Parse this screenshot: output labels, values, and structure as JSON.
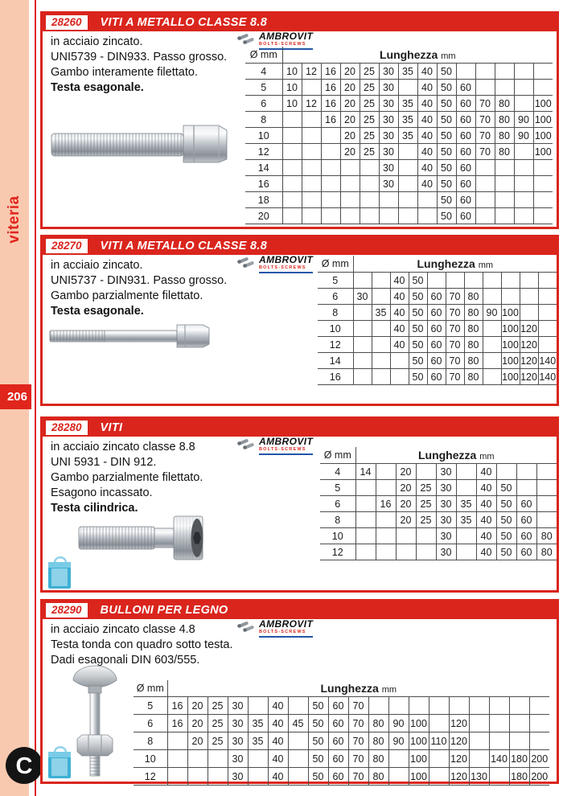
{
  "page": {
    "sidebar_label": "viteria",
    "page_number": "206",
    "corner_mark": "C"
  },
  "brand": {
    "name": "AMBROVIT",
    "subtitle": "BOLTS-SCREWS"
  },
  "table_header": {
    "diameter": "Ø mm",
    "length": "Lunghezza",
    "length_unit": "mm"
  },
  "sections": [
    {
      "code": "28260",
      "title": "VITI A METALLO CLASSE 8.8",
      "description": [
        "in acciaio zincato.",
        "UNI5739 - DIN933. Passo grosso.",
        "Gambo interamente filettato."
      ],
      "emphasis": "Testa esagonale.",
      "table": {
        "rows": [
          {
            "d": "4",
            "cells": [
              "10",
              "12",
              "16",
              "20",
              "25",
              "30",
              "35",
              "40",
              "50",
              "",
              "",
              "",
              "",
              ""
            ]
          },
          {
            "d": "5",
            "cells": [
              "10",
              "",
              "16",
              "20",
              "25",
              "30",
              "",
              "40",
              "50",
              "60",
              "",
              "",
              "",
              ""
            ]
          },
          {
            "d": "6",
            "cells": [
              "10",
              "12",
              "16",
              "20",
              "25",
              "30",
              "35",
              "40",
              "50",
              "60",
              "70",
              "80",
              "",
              "100"
            ]
          },
          {
            "d": "8",
            "cells": [
              "",
              "",
              "16",
              "20",
              "25",
              "30",
              "35",
              "40",
              "50",
              "60",
              "70",
              "80",
              "90",
              "100"
            ]
          },
          {
            "d": "10",
            "cells": [
              "",
              "",
              "",
              "20",
              "25",
              "30",
              "35",
              "40",
              "50",
              "60",
              "70",
              "80",
              "90",
              "100"
            ]
          },
          {
            "d": "12",
            "cells": [
              "",
              "",
              "",
              "20",
              "25",
              "30",
              "",
              "40",
              "50",
              "60",
              "70",
              "80",
              "",
              "100"
            ]
          },
          {
            "d": "14",
            "cells": [
              "",
              "",
              "",
              "",
              "",
              "30",
              "",
              "40",
              "50",
              "60",
              "",
              "",
              "",
              ""
            ]
          },
          {
            "d": "16",
            "cells": [
              "",
              "",
              "",
              "",
              "",
              "30",
              "",
              "40",
              "50",
              "60",
              "",
              "",
              "",
              ""
            ]
          },
          {
            "d": "18",
            "cells": [
              "",
              "",
              "",
              "",
              "",
              "",
              "",
              "",
              "50",
              "60",
              "",
              "",
              "",
              ""
            ]
          },
          {
            "d": "20",
            "cells": [
              "",
              "",
              "",
              "",
              "",
              "",
              "",
              "",
              "50",
              "60",
              "",
              "",
              "",
              ""
            ]
          }
        ]
      }
    },
    {
      "code": "28270",
      "title": "VITI A METALLO CLASSE 8.8",
      "description": [
        "in acciaio zincato.",
        "UNI5737 - DIN931. Passo grosso.",
        "Gambo parzialmente filettato."
      ],
      "emphasis": "Testa esagonale.",
      "table": {
        "rows": [
          {
            "d": "5",
            "cells": [
              "",
              "",
              "40",
              "50",
              "",
              "",
              "",
              "",
              "",
              "",
              ""
            ]
          },
          {
            "d": "6",
            "cells": [
              "30",
              "",
              "40",
              "50",
              "60",
              "70",
              "80",
              "",
              "",
              "",
              ""
            ]
          },
          {
            "d": "8",
            "cells": [
              "",
              "35",
              "40",
              "50",
              "60",
              "70",
              "80",
              "90",
              "100",
              "",
              ""
            ]
          },
          {
            "d": "10",
            "cells": [
              "",
              "",
              "40",
              "50",
              "60",
              "70",
              "80",
              "",
              "100",
              "120",
              ""
            ]
          },
          {
            "d": "12",
            "cells": [
              "",
              "",
              "40",
              "50",
              "60",
              "70",
              "80",
              "",
              "100",
              "120",
              ""
            ]
          },
          {
            "d": "14",
            "cells": [
              "",
              "",
              "",
              "50",
              "60",
              "70",
              "80",
              "",
              "100",
              "120",
              "140"
            ]
          },
          {
            "d": "16",
            "cells": [
              "",
              "",
              "",
              "50",
              "60",
              "70",
              "80",
              "",
              "100",
              "120",
              "140"
            ]
          }
        ]
      }
    },
    {
      "code": "28280",
      "title": "VITI",
      "description": [
        "in acciaio zincato classe 8.8",
        "UNI 5931 - DIN 912.",
        "Gambo parzialmente filettato.",
        "Esagono incassato."
      ],
      "emphasis": "Testa cilindrica.",
      "table": {
        "rows": [
          {
            "d": "4",
            "cells": [
              "14",
              "",
              "20",
              "",
              "30",
              "",
              "40",
              "",
              "",
              ""
            ]
          },
          {
            "d": "5",
            "cells": [
              "",
              "",
              "20",
              "25",
              "30",
              "",
              "40",
              "50",
              "",
              ""
            ]
          },
          {
            "d": "6",
            "cells": [
              "",
              "16",
              "20",
              "25",
              "30",
              "35",
              "40",
              "50",
              "60",
              ""
            ]
          },
          {
            "d": "8",
            "cells": [
              "",
              "",
              "20",
              "25",
              "30",
              "35",
              "40",
              "50",
              "60",
              ""
            ]
          },
          {
            "d": "10",
            "cells": [
              "",
              "",
              "",
              "",
              "30",
              "",
              "40",
              "50",
              "60",
              "80"
            ]
          },
          {
            "d": "12",
            "cells": [
              "",
              "",
              "",
              "",
              "30",
              "",
              "40",
              "50",
              "60",
              "80"
            ]
          }
        ]
      }
    },
    {
      "code": "28290",
      "title": "BULLONI PER LEGNO",
      "description": [
        "in acciaio zincato classe 4.8",
        "Testa tonda con quadro sotto testa.",
        "Dadi esagonali  DIN 603/555."
      ],
      "emphasis": "",
      "table": {
        "rows": [
          {
            "d": "5",
            "cells": [
              "16",
              "20",
              "25",
              "30",
              "",
              "40",
              "",
              "50",
              "60",
              "70",
              "",
              "",
              "",
              "",
              "",
              "",
              "",
              "",
              ""
            ]
          },
          {
            "d": "6",
            "cells": [
              "16",
              "20",
              "25",
              "30",
              "35",
              "40",
              "45",
              "50",
              "60",
              "70",
              "80",
              "90",
              "100",
              "",
              "120",
              "",
              "",
              "",
              ""
            ]
          },
          {
            "d": "8",
            "cells": [
              "",
              "20",
              "25",
              "30",
              "35",
              "40",
              "",
              "50",
              "60",
              "70",
              "80",
              "90",
              "100",
              "110",
              "120",
              "",
              "",
              "",
              ""
            ]
          },
          {
            "d": "10",
            "cells": [
              "",
              "",
              "",
              "30",
              "",
              "40",
              "",
              "50",
              "60",
              "70",
              "80",
              "",
              "100",
              "",
              "120",
              "",
              "140",
              "180",
              "200"
            ]
          },
          {
            "d": "12",
            "cells": [
              "",
              "",
              "",
              "30",
              "",
              "40",
              "",
              "50",
              "60",
              "70",
              "80",
              "",
              "100",
              "",
              "120",
              "130",
              "",
              "180",
              "200"
            ]
          }
        ]
      }
    }
  ],
  "colors": {
    "accent_red": "#da251d",
    "sidebar_salmon": "#f9c9af",
    "grid_line": "#4d4d4d",
    "brand_blue": "#2356a8",
    "box_blue": "#2ea9d1"
  }
}
